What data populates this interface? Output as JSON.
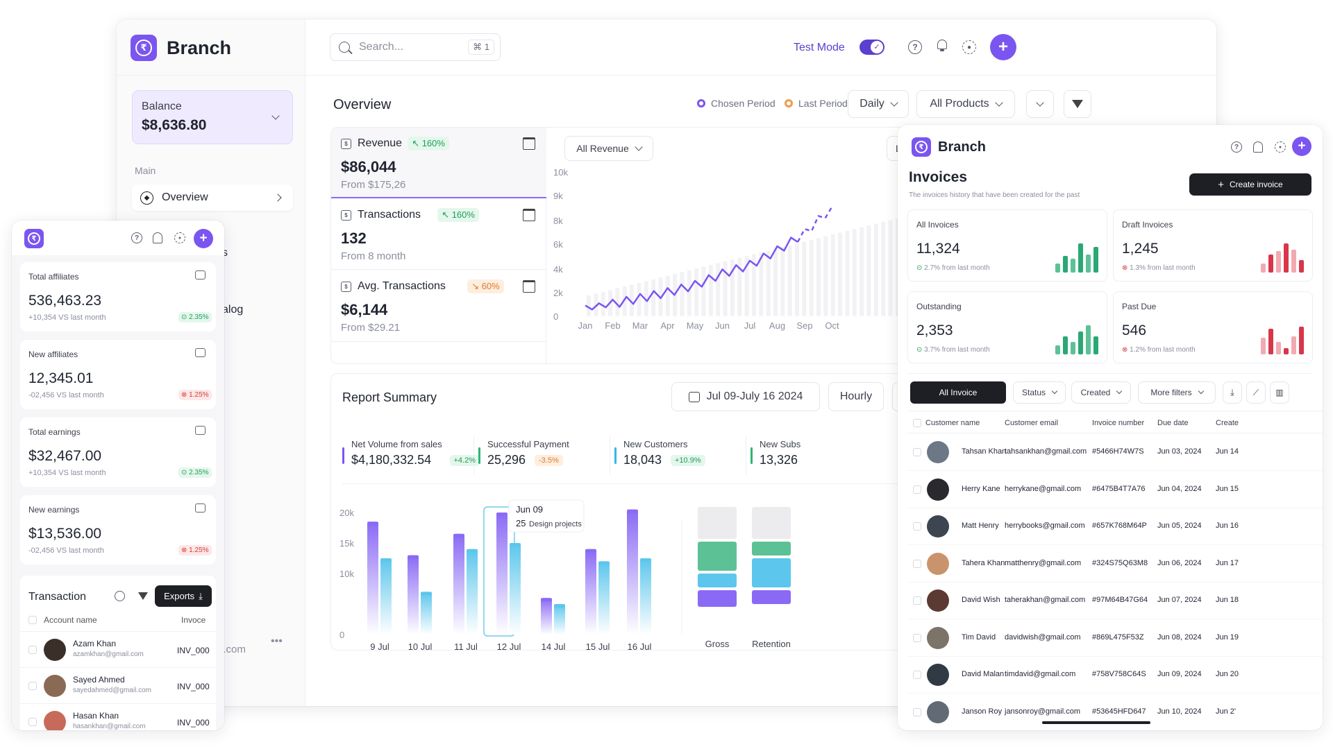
{
  "brand": {
    "name": "Branch",
    "logo_glyph": "₹",
    "accent": "#7b55f0"
  },
  "topbar": {
    "search_placeholder": "Search...",
    "shortcut": "⌘ 1",
    "test_mode_label": "Test Mode"
  },
  "sidebar": {
    "balance_label": "Balance",
    "balance_value": "$8,636.80",
    "section_main": "Main",
    "overview_label": "Overview",
    "partial_items": [
      "s",
      "alog"
    ],
    "footer_text": "l.com",
    "more": "•••"
  },
  "overview": {
    "title": "Overview",
    "legend_chosen": "Chosen Period",
    "legend_last": "Last Period",
    "daily_label": "Daily",
    "products_label": "All Products"
  },
  "metrics": [
    {
      "label": "Revenue",
      "badge": "↖ 160%",
      "badge_type": "green",
      "value": "$86,044",
      "sub": "From $175,26",
      "icon": "bank-icon"
    },
    {
      "label": "Transactions",
      "badge": "↖ 160%",
      "badge_type": "green",
      "value": "132",
      "sub": "From 8 month",
      "icon": "bank-icon"
    },
    {
      "label": "Avg. Transactions",
      "badge": "↘ 60%",
      "badge_type": "orange",
      "value": "$6,144",
      "sub": "From $29.21",
      "icon": "bank-icon"
    }
  ],
  "revenue_chart": {
    "filter_label": "All Revenue",
    "partial_btn": "La",
    "y_ticks": [
      "10k",
      "9k",
      "8k",
      "6k",
      "4k",
      "2k",
      "0"
    ],
    "x_ticks": [
      "Jan",
      "Feb",
      "Mar",
      "Apr",
      "May",
      "Jun",
      "Jul",
      "Aug",
      "Sep",
      "Oct"
    ],
    "colors": {
      "line": "#7b55f0",
      "bars": "#f2f2f5"
    }
  },
  "chart_data": [
    {
      "type": "line",
      "title": "",
      "x": [
        "Jan",
        "Feb",
        "Mar",
        "Apr",
        "May",
        "Jun",
        "Jul",
        "Aug",
        "Sep",
        "Oct"
      ],
      "series": [
        {
          "values": [
            600,
            900,
            1300,
            1700,
            2200,
            3000,
            3600,
            4600,
            5800,
            7600
          ]
        }
      ],
      "ylim": [
        0,
        10000
      ]
    },
    {
      "type": "bar",
      "title": "Report Summary",
      "categories": [
        "9 Jul",
        "10 Jul",
        "11 Jul",
        "12 Jul",
        "14 Jul",
        "15 Jul",
        "16 Jul"
      ],
      "series": [
        {
          "values": [
            18500,
            13000,
            16500,
            20000,
            6000,
            14000,
            20500
          ]
        },
        {
          "values": [
            12500,
            7000,
            14000,
            15000,
            5000,
            12000,
            12500
          ]
        }
      ],
      "ylim": [
        0,
        20000
      ],
      "y_ticks": [
        "20k",
        "15k",
        "10k",
        "0"
      ],
      "colors": {
        "primary": "#8a6af4",
        "secondary": "#5cc6ec"
      }
    }
  ],
  "report": {
    "title": "Report Summary",
    "date_range": "Jul 09-July 16 2024",
    "granularity": "Hourly",
    "stats": [
      {
        "label": "Net Volume from sales",
        "value": "$4,180,332.54",
        "badge": "+4.2%",
        "badge_type": "green",
        "color": "#7b55f0"
      },
      {
        "label": "Successful Payment",
        "value": "25,296",
        "badge": "-3.5%",
        "badge_type": "orange",
        "color": "#2bb673"
      },
      {
        "label": "New Customers",
        "value": "18,043",
        "badge": "+10.9%",
        "badge_type": "green",
        "color": "#36b6e6"
      },
      {
        "label": "New Subs",
        "value": "13,326",
        "badge": "",
        "badge_type": "",
        "color": "#2bb673"
      }
    ],
    "tooltip": {
      "date": "Jun 09",
      "count": "25",
      "text": "Design projects"
    },
    "stack_labels": [
      "Gross",
      "Retention"
    ]
  },
  "mobile": {
    "cards": [
      {
        "title": "Total affiliates",
        "value": "536,463.23",
        "sub": "+10,354 VS last month",
        "badge": "2.35%",
        "badge_type": "green",
        "icon": "chart-corner-icon"
      },
      {
        "title": "New affiliates",
        "value": "12,345.01",
        "sub": "-02,456 VS last month",
        "badge": "1.25%",
        "badge_type": "red",
        "icon": "users-chart-icon"
      },
      {
        "title": "Total earnings",
        "value": "$32,467.00",
        "sub": "+10,354 VS last month",
        "badge": "2.35%",
        "badge_type": "green",
        "icon": "wallet-icon"
      },
      {
        "title": "New earnings",
        "value": "$13,536.00",
        "sub": "-02,456 VS last month",
        "badge": "1.25%",
        "badge_type": "red",
        "icon": "wallet-icon"
      }
    ],
    "transaction_title": "Transaction",
    "exports_label": "Exports",
    "col_account": "Account name",
    "col_invoice": "Invoce",
    "rows": [
      {
        "name": "Azam Khan",
        "email": "azamkhan@gmail.com",
        "invoice": "INV_000",
        "avatar": "#3b2f2a"
      },
      {
        "name": "Sayed Ahmed",
        "email": "sayedahmed@gmail.com",
        "invoice": "INV_000",
        "avatar": "#8a6a55"
      },
      {
        "name": "Hasan Khan",
        "email": "hasankhan@gmail.com",
        "invoice": "INV_000",
        "avatar": "#c86a5a"
      }
    ]
  },
  "invoices": {
    "title": "Invoices",
    "subtitle": "The invoices history that have been created for the past",
    "create_label": "Create invoice",
    "kpis": [
      {
        "title": "All Invoices",
        "value": "11,324",
        "trend": "2.7% from last month",
        "trend_type": "green",
        "bars": [
          0.3,
          0.55,
          0.45,
          0.95,
          0.6,
          0.85
        ]
      },
      {
        "title": "Draft Invoices",
        "value": "1,245",
        "trend": "1.3% from last month",
        "trend_type": "red",
        "bars": [
          0.3,
          0.6,
          0.7,
          0.95,
          0.75,
          0.4
        ]
      },
      {
        "title": "Outstanding",
        "value": "2,353",
        "trend": "3.7% from last month",
        "trend_type": "green",
        "bars": [
          0.3,
          0.6,
          0.4,
          0.75,
          0.95,
          0.6
        ]
      },
      {
        "title": "Past Due",
        "value": "546",
        "trend": "1.2% from last month",
        "trend_type": "red",
        "bars": [
          0.55,
          0.85,
          0.4,
          0.2,
          0.6,
          0.9
        ]
      }
    ],
    "tab_active": "All Invoice",
    "filter_status": "Status",
    "filter_created": "Created",
    "filter_more": "More filters",
    "columns": [
      "Customer name",
      "Customer email",
      "Invoice number",
      "Due date",
      "Create"
    ],
    "rows": [
      {
        "name": "Tahsan Khan",
        "email": "tahsankhan@gmail.com",
        "number": "#5466H74W7S",
        "due": "Jun 03, 2024",
        "created": "Jun 14",
        "avatar": "#6c7885"
      },
      {
        "name": "Herry Kane",
        "email": "herrykane@gmail.com",
        "number": "#6475B4T7A76",
        "due": "Jun 04, 2024",
        "created": "Jun 15",
        "avatar": "#2a2a2e"
      },
      {
        "name": "Matt Henry",
        "email": "herrybooks@gmail.com",
        "number": "#657K768M64P",
        "due": "Jun 05, 2024",
        "created": "Jun 16",
        "avatar": "#3d4550"
      },
      {
        "name": "Tahera Khan",
        "email": "matthenry@gmail.com",
        "number": "#324S75Q63M8",
        "due": "Jun 06, 2024",
        "created": "Jun 17",
        "avatar": "#c9946c"
      },
      {
        "name": "David Wish",
        "email": "taherakhan@gmail.com",
        "number": "#97M64B47G64",
        "due": "Jun 07, 2024",
        "created": "Jun 18",
        "avatar": "#5a3a33"
      },
      {
        "name": "Tim David",
        "email": "davidwish@gmail.com",
        "number": "#869L475F53Z",
        "due": "Jun 08, 2024",
        "created": "Jun 19",
        "avatar": "#7c7468"
      },
      {
        "name": "David Malan",
        "email": "timdavid@gmail.com",
        "number": "#758V758C64S",
        "due": "Jun 09, 2024",
        "created": "Jun 20",
        "avatar": "#2f3a44"
      },
      {
        "name": "Janson Roy",
        "email": "jansonroy@gmail.com",
        "number": "#53645HFD647",
        "due": "Jun 10, 2024",
        "created": "Jun 2'",
        "avatar": "#626a75"
      }
    ]
  }
}
